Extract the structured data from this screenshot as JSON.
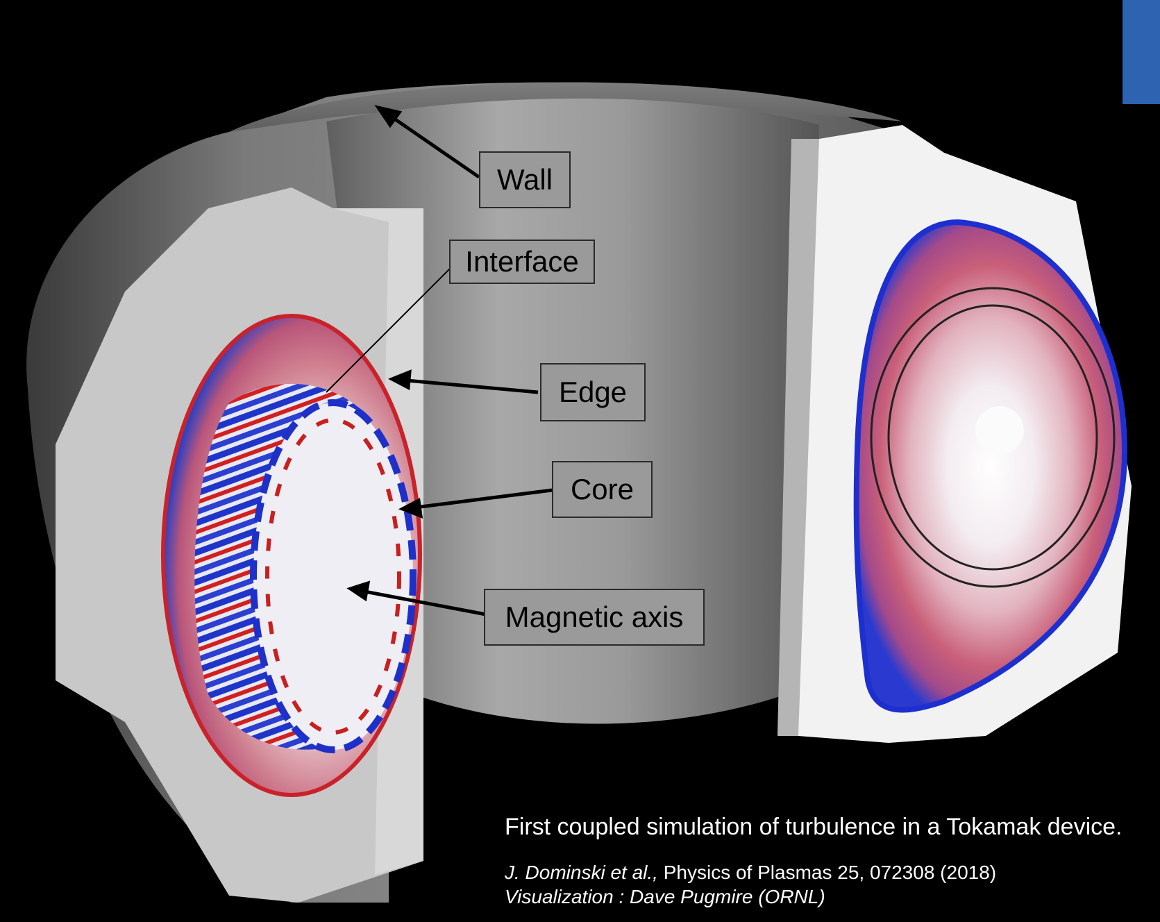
{
  "labels": {
    "wall": "Wall",
    "interface": "Interface",
    "edge": "Edge",
    "core": "Core",
    "magnetic_axis": "Magnetic axis"
  },
  "caption": {
    "main": "First coupled simulation of turbulence in a Tokamak device.",
    "citation_authors": "J. Dominski et al.,",
    "citation_ref": " Physics of Plasmas 25, 072308 (2018)",
    "visualization": "Visualization : Dave Pugmire (ORNL)"
  },
  "colors": {
    "background": "#000000",
    "torus_grey": "#8c8c8c",
    "cross_section_white": "#f2f2f2",
    "turbulence_red": "#d81b1b",
    "turbulence_blue": "#1a2fd0",
    "label_box": "#9a9a9a",
    "caption_text": "#ffffff"
  }
}
